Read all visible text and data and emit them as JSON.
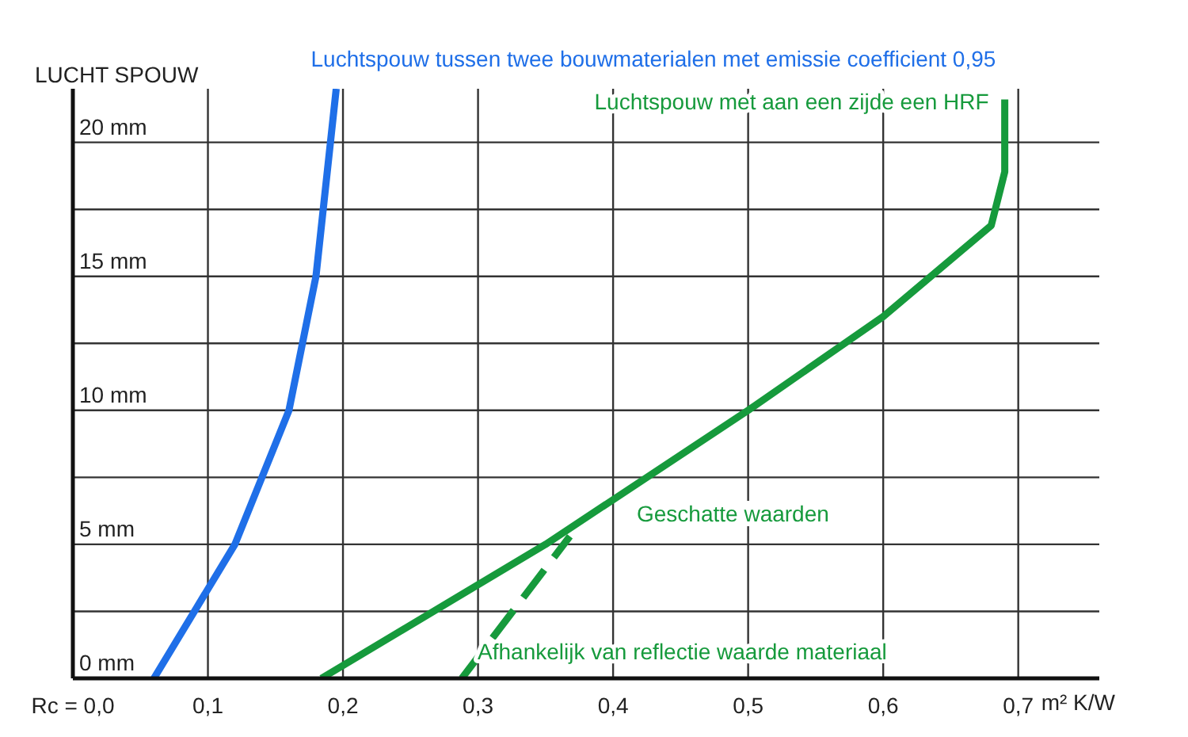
{
  "chart_data": {
    "type": "line",
    "ylabel": "LUCHT SPOUW",
    "xlabel": "m² K/W",
    "xlim": [
      0,
      0.76
    ],
    "ylim": [
      0,
      22
    ],
    "xticks": [
      {
        "value": 0,
        "label": "Rc = 0,0"
      },
      {
        "value": 0.1,
        "label": "0,1"
      },
      {
        "value": 0.2,
        "label": "0,2"
      },
      {
        "value": 0.3,
        "label": "0,3"
      },
      {
        "value": 0.4,
        "label": "0,4"
      },
      {
        "value": 0.5,
        "label": "0,5"
      },
      {
        "value": 0.6,
        "label": "0,6"
      },
      {
        "value": 0.7,
        "label": "0,7"
      }
    ],
    "yticks": [
      {
        "value": 0,
        "label": "0 mm"
      },
      {
        "value": 2.5,
        "label": null
      },
      {
        "value": 5,
        "label": "5 mm"
      },
      {
        "value": 7.5,
        "label": null
      },
      {
        "value": 10,
        "label": "10 mm"
      },
      {
        "value": 12.5,
        "label": null
      },
      {
        "value": 15,
        "label": "15 mm"
      },
      {
        "value": 17.5,
        "label": null
      },
      {
        "value": 20,
        "label": "20 mm"
      }
    ],
    "grid": true,
    "marker": "none",
    "series": [
      {
        "name": "Luchtspouw tussen twee bouwmaterialen met emissie coefficient 0,95",
        "color": "#1f6fe8",
        "line_style": "solid",
        "x": [
          0.06,
          0.12,
          0.16,
          0.18,
          0.195
        ],
        "values": [
          0,
          5,
          10,
          15,
          22
        ]
      },
      {
        "name": "Luchtspouw met aan een zijde een HRF",
        "color": "#169a3c",
        "line_style": "solid",
        "x": [
          0.184,
          0.35,
          0.5,
          0.6,
          0.68,
          0.69,
          0.69
        ],
        "values": [
          0,
          5,
          10,
          13.5,
          16.9,
          18.9,
          21.6
        ]
      },
      {
        "name": "Afhankelijk van reflectie waarde materiaal",
        "color": "#169a3c",
        "line_style": "dashed",
        "x": [
          0.288,
          0.368
        ],
        "values": [
          0,
          5.3
        ]
      }
    ],
    "annotations": [
      "Geschatte waarden"
    ]
  }
}
